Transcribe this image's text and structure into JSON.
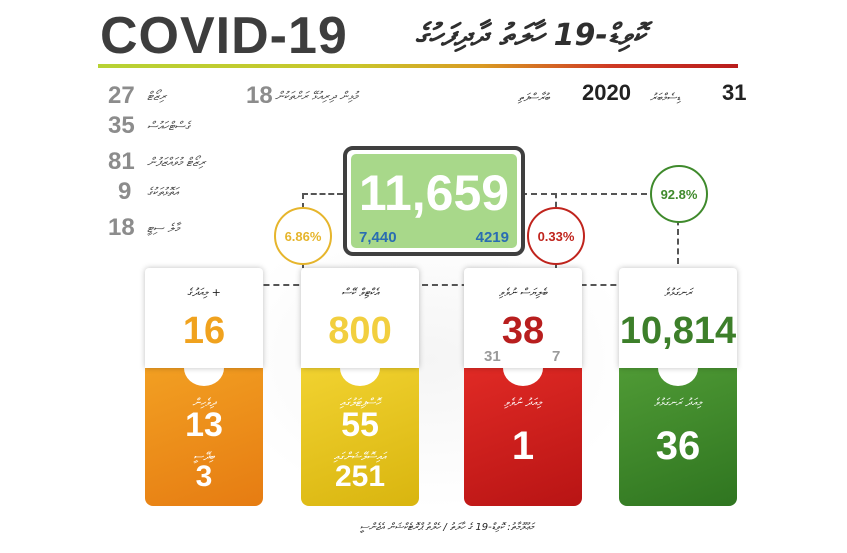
{
  "header": {
    "title": "COVID-19",
    "title_dhivehi": "ކޮވިޑް-19 ހާލަތު ދާދިފަހުގެ",
    "accent_colors": [
      "#b7d234",
      "#d99a23",
      "#b91c1c"
    ]
  },
  "side_stats": [
    {
      "value": "27",
      "label": "ރިޒޯޓް"
    },
    {
      "value": "35",
      "label": "ގެސްޓްހައުސް"
    },
    {
      "value": "81",
      "label": "ރިޒޯޓް މުވައްޒަފުން"
    },
    {
      "value": "9",
      "label": "އަތޮޅުތަކުގެ"
    },
    {
      "value": "18",
      "label": "މާލެ ސިޓީ"
    }
  ],
  "mid_stat": {
    "value": "18",
    "label": "މުޅިން ދިރިއުޅޭ ރަށްތަކުން"
  },
  "date": {
    "day": "31",
    "month": "ޑިސެމްބަރު",
    "year": "2020",
    "weekday": "ބުރާސްފަތި"
  },
  "total": {
    "value": "11,659",
    "left_value": "7,440",
    "right_value": "4219",
    "color": "#a8d88a"
  },
  "percentages": {
    "active": {
      "value": "6.86%",
      "color": "#e6b52c"
    },
    "deaths": {
      "value": "0.33%",
      "color": "#c0241d"
    },
    "recovered": {
      "value": "92.8%",
      "color": "#3f8a2c"
    }
  },
  "cards": [
    {
      "label": "މިއަދުގެ +",
      "value": "16",
      "value_color": "#f0a21e",
      "bottom_color": "#ec8c17",
      "sub": [
        {
          "label": "ދިވެހިން",
          "value": "13"
        },
        {
          "label": "ބިދޭސީ",
          "value": "3"
        }
      ]
    },
    {
      "label": "އެކްޓިވް ކޭސް",
      "value": "800",
      "value_color": "#f2cf3f",
      "bottom_color": "#e5c21b",
      "sub": [
        {
          "label": "ހޮސްޕިޓަލުގައި",
          "value": "55"
        },
        {
          "label": "އައިސޮލޭޝަންގައި",
          "value": "251"
        }
      ]
    },
    {
      "label": "ބެލިޔަސް ނުވެވި",
      "value": "38",
      "value_color": "#b81e1e",
      "small_left": "31",
      "small_right": "7",
      "bottom_color": "#d01f1f",
      "sub": [
        {
          "label": "މިއަދު ނުވެވި",
          "value": "1"
        }
      ]
    },
    {
      "label": "ރަނގަޅުވެ",
      "value": "10,814",
      "value_color": "#3d7f2a",
      "bottom_color": "#3f8a2c",
      "sub": [
        {
          "label": "މިއަދު ރަނގަޅުވެ",
          "value": "36"
        }
      ]
    }
  ],
  "footer": "މަޢުލޫމާތު: ކޮވިޑް-19 ގެ ހާލަތު / ހެލްތު ޕްރޮޓެކްޝަން އެޖެންސީ"
}
